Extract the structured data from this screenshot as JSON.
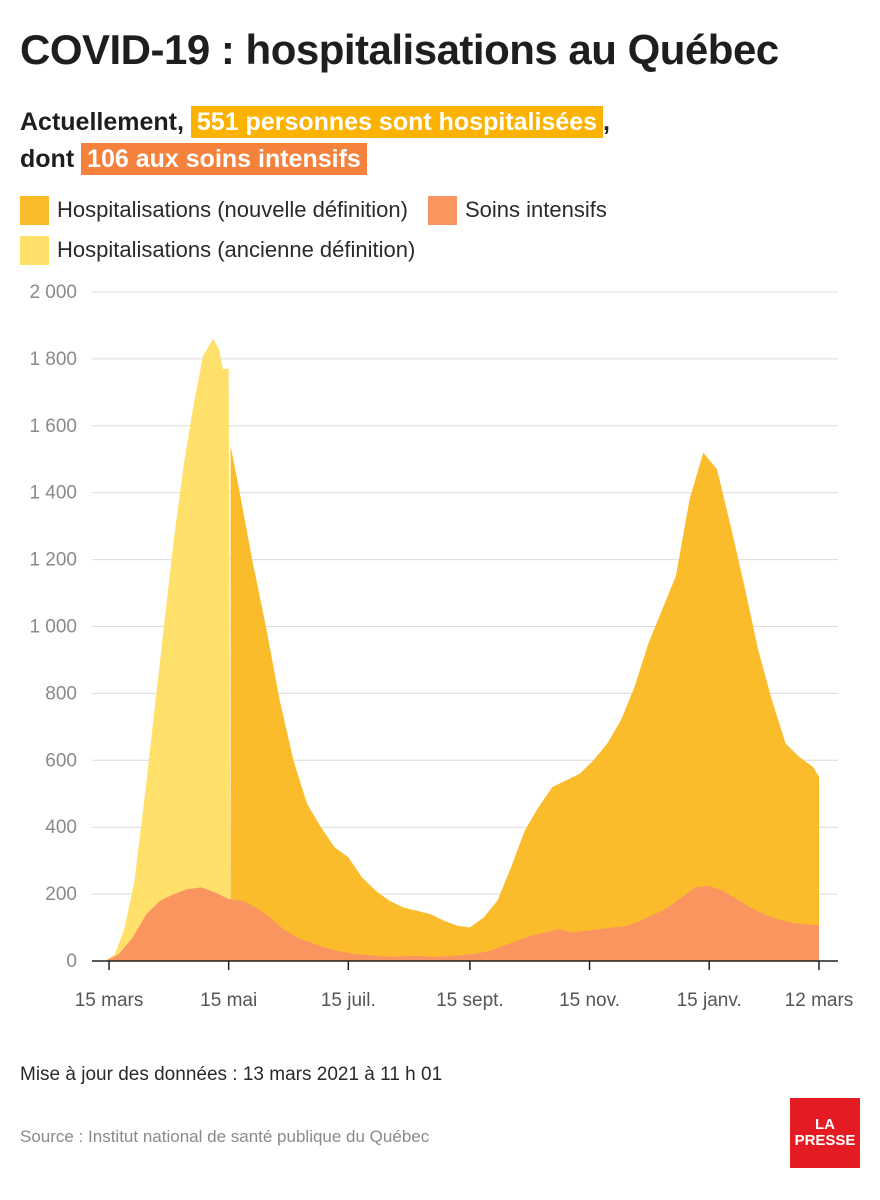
{
  "title": "COVID-19 : hospitalisations au Québec",
  "summary": {
    "prefix": "Actuellement,",
    "hosp_highlight": "551 personnes sont hospitalisées",
    "comma": ",",
    "dont": "dont",
    "icu_highlight": "106 aux soins intensifs"
  },
  "legend": [
    {
      "label": "Hospitalisations (nouvelle définition)",
      "color": "#fbbc2c"
    },
    {
      "label": "Soins intensifs",
      "color": "#fb9560"
    },
    {
      "label": "Hospitalisations (ancienne définition)",
      "color": "#fee06a"
    }
  ],
  "footer": {
    "update": "Mise à jour des données : 13 mars 2021 à 11 h 01",
    "source": "Source : Institut national de santé publique du Québec",
    "logo_line1": "LA",
    "logo_line2": "PRESSE"
  },
  "chart_data": {
    "type": "area",
    "x_unit": "date",
    "x_range": [
      "2020-03-13",
      "2021-03-12"
    ],
    "ylim": [
      0,
      2000
    ],
    "y_ticks": [
      0,
      200,
      400,
      600,
      800,
      1000,
      1200,
      1400,
      1600,
      1800,
      2000
    ],
    "y_tick_labels": [
      "0",
      "200",
      "400",
      "600",
      "800",
      "1 000",
      "1 200",
      "1 400",
      "1 600",
      "1 800",
      "2 000"
    ],
    "x_ticks": [
      "2020-03-15",
      "2020-05-15",
      "2020-07-15",
      "2020-09-15",
      "2020-11-15",
      "2021-01-15",
      "2021-03-12"
    ],
    "x_tick_labels": [
      "15 mars",
      "15 mai",
      "15 juil.",
      "15 sept.",
      "15 nov.",
      "15 janv.",
      "12 mars"
    ],
    "grid": true,
    "legend_position": "top-left",
    "series": [
      {
        "name": "Hospitalisations (ancienne définition)",
        "color": "#fee06a",
        "points": [
          [
            "2020-03-13",
            0
          ],
          [
            "2020-03-18",
            20
          ],
          [
            "2020-03-23",
            100
          ],
          [
            "2020-03-28",
            240
          ],
          [
            "2020-04-02",
            480
          ],
          [
            "2020-04-07",
            740
          ],
          [
            "2020-04-12",
            1000
          ],
          [
            "2020-04-17",
            1260
          ],
          [
            "2020-04-22",
            1480
          ],
          [
            "2020-04-27",
            1660
          ],
          [
            "2020-05-02",
            1810
          ],
          [
            "2020-05-07",
            1860
          ],
          [
            "2020-05-10",
            1830
          ],
          [
            "2020-05-12",
            1770
          ],
          [
            "2020-05-15",
            1770
          ],
          [
            "2020-05-16",
            0
          ]
        ]
      },
      {
        "name": "Hospitalisations (nouvelle définition)",
        "color": "#fbbc2c",
        "points": [
          [
            "2020-05-16",
            1540
          ],
          [
            "2020-05-20",
            1420
          ],
          [
            "2020-05-27",
            1200
          ],
          [
            "2020-06-03",
            1000
          ],
          [
            "2020-06-10",
            780
          ],
          [
            "2020-06-17",
            600
          ],
          [
            "2020-06-24",
            470
          ],
          [
            "2020-07-01",
            400
          ],
          [
            "2020-07-08",
            340
          ],
          [
            "2020-07-15",
            310
          ],
          [
            "2020-07-22",
            250
          ],
          [
            "2020-07-29",
            210
          ],
          [
            "2020-08-05",
            180
          ],
          [
            "2020-08-12",
            160
          ],
          [
            "2020-08-19",
            150
          ],
          [
            "2020-08-26",
            140
          ],
          [
            "2020-09-02",
            120
          ],
          [
            "2020-09-09",
            105
          ],
          [
            "2020-09-15",
            100
          ],
          [
            "2020-09-22",
            130
          ],
          [
            "2020-09-29",
            180
          ],
          [
            "2020-10-06",
            280
          ],
          [
            "2020-10-13",
            390
          ],
          [
            "2020-10-20",
            460
          ],
          [
            "2020-10-27",
            520
          ],
          [
            "2020-11-03",
            540
          ],
          [
            "2020-11-10",
            560
          ],
          [
            "2020-11-17",
            600
          ],
          [
            "2020-11-24",
            650
          ],
          [
            "2020-12-01",
            720
          ],
          [
            "2020-12-08",
            820
          ],
          [
            "2020-12-15",
            950
          ],
          [
            "2020-12-22",
            1050
          ],
          [
            "2020-12-29",
            1150
          ],
          [
            "2021-01-05",
            1380
          ],
          [
            "2021-01-12",
            1520
          ],
          [
            "2021-01-19",
            1470
          ],
          [
            "2021-01-26",
            1300
          ],
          [
            "2021-02-02",
            1120
          ],
          [
            "2021-02-09",
            930
          ],
          [
            "2021-02-16",
            780
          ],
          [
            "2021-02-23",
            650
          ],
          [
            "2021-03-02",
            610
          ],
          [
            "2021-03-09",
            580
          ],
          [
            "2021-03-12",
            551
          ]
        ]
      },
      {
        "name": "Soins intensifs",
        "color": "#fb9560",
        "points": [
          [
            "2020-03-13",
            0
          ],
          [
            "2020-03-20",
            20
          ],
          [
            "2020-03-27",
            70
          ],
          [
            "2020-04-03",
            140
          ],
          [
            "2020-04-10",
            180
          ],
          [
            "2020-04-17",
            200
          ],
          [
            "2020-04-24",
            215
          ],
          [
            "2020-05-01",
            220
          ],
          [
            "2020-05-08",
            205
          ],
          [
            "2020-05-15",
            185
          ],
          [
            "2020-05-22",
            180
          ],
          [
            "2020-05-29",
            160
          ],
          [
            "2020-06-05",
            130
          ],
          [
            "2020-06-12",
            95
          ],
          [
            "2020-06-19",
            70
          ],
          [
            "2020-06-26",
            55
          ],
          [
            "2020-07-03",
            40
          ],
          [
            "2020-07-10",
            30
          ],
          [
            "2020-07-17",
            22
          ],
          [
            "2020-07-24",
            18
          ],
          [
            "2020-07-31",
            15
          ],
          [
            "2020-08-07",
            12
          ],
          [
            "2020-08-14",
            15
          ],
          [
            "2020-08-21",
            15
          ],
          [
            "2020-08-28",
            12
          ],
          [
            "2020-09-04",
            15
          ],
          [
            "2020-09-11",
            18
          ],
          [
            "2020-09-18",
            22
          ],
          [
            "2020-09-25",
            30
          ],
          [
            "2020-10-02",
            45
          ],
          [
            "2020-10-09",
            60
          ],
          [
            "2020-10-16",
            75
          ],
          [
            "2020-10-23",
            85
          ],
          [
            "2020-10-30",
            95
          ],
          [
            "2020-11-06",
            85
          ],
          [
            "2020-11-13",
            90
          ],
          [
            "2020-11-20",
            95
          ],
          [
            "2020-11-27",
            100
          ],
          [
            "2020-12-04",
            105
          ],
          [
            "2020-12-11",
            120
          ],
          [
            "2020-12-18",
            140
          ],
          [
            "2020-12-25",
            160
          ],
          [
            "2021-01-01",
            190
          ],
          [
            "2021-01-08",
            220
          ],
          [
            "2021-01-15",
            225
          ],
          [
            "2021-01-22",
            210
          ],
          [
            "2021-01-29",
            185
          ],
          [
            "2021-02-05",
            160
          ],
          [
            "2021-02-12",
            140
          ],
          [
            "2021-02-19",
            125
          ],
          [
            "2021-02-26",
            115
          ],
          [
            "2021-03-05",
            110
          ],
          [
            "2021-03-12",
            106
          ]
        ]
      }
    ]
  }
}
